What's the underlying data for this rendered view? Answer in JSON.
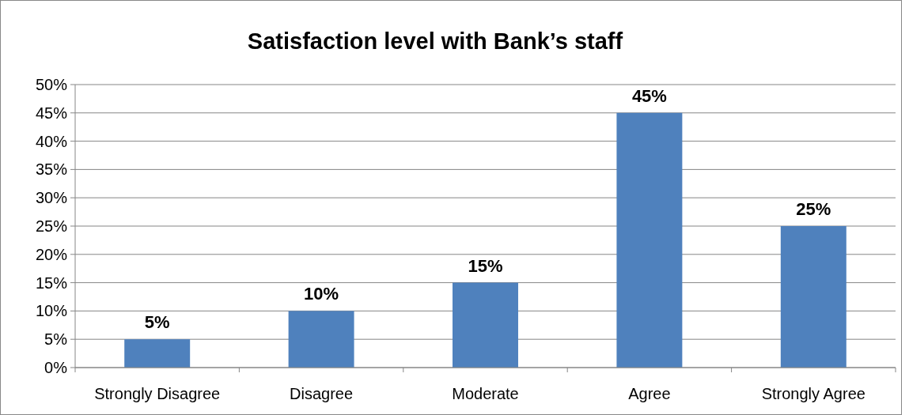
{
  "chart_data": {
    "type": "bar",
    "title": "Satisfaction level with Bank’s staff",
    "categories": [
      "Strongly Disagree",
      "Disagree",
      "Moderate",
      "Agree",
      "Strongly Agree"
    ],
    "values": [
      5,
      10,
      15,
      45,
      25
    ],
    "value_labels": [
      "5%",
      "10%",
      "15%",
      "45%",
      "25%"
    ],
    "color": "#4f81bd",
    "ylim": [
      0,
      50
    ],
    "yticks": [
      {
        "value": 0,
        "label": "0%"
      },
      {
        "value": 5,
        "label": "5%"
      },
      {
        "value": 10,
        "label": "10%"
      },
      {
        "value": 15,
        "label": "15%"
      },
      {
        "value": 20,
        "label": "20%"
      },
      {
        "value": 25,
        "label": "25%"
      },
      {
        "value": 30,
        "label": "30%"
      },
      {
        "value": 35,
        "label": "35%"
      },
      {
        "value": 40,
        "label": "40%"
      },
      {
        "value": 45,
        "label": "45%"
      },
      {
        "value": 50,
        "label": "50%"
      }
    ],
    "grid": "y"
  }
}
